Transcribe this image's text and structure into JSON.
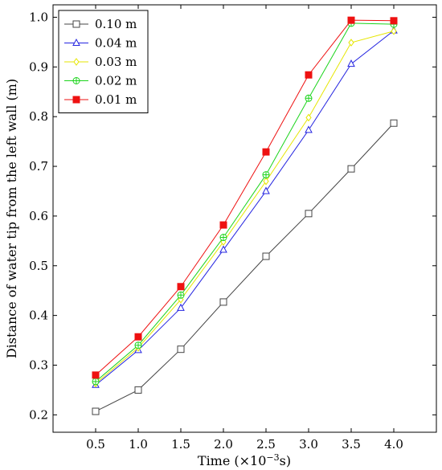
{
  "chart_data": {
    "type": "line",
    "title": "",
    "xlabel_main": "Time (×10",
    "xlabel_exp": "−3",
    "xlabel_unit": "s)",
    "ylabel": "Distance of water tip from the left wall (m)",
    "x": [
      0.5,
      1.0,
      1.5,
      2.0,
      2.5,
      3.0,
      3.5,
      4.0
    ],
    "xticks": [
      "0.5",
      "1.0",
      "1.5",
      "2.0",
      "2.5",
      "3.0",
      "3.5",
      "4.0"
    ],
    "yticks": [
      "0.2",
      "0.3",
      "0.4",
      "0.5",
      "0.6",
      "0.7",
      "0.8",
      "0.9",
      "1.0"
    ],
    "xlim": [
      0.0,
      4.5
    ],
    "ylim": [
      0.165,
      1.025
    ],
    "grid": false,
    "legend_position": "top-left",
    "series": [
      {
        "name": "0.10 m",
        "color": "#444444",
        "marker": "open-square",
        "values": [
          0.207,
          0.25,
          0.332,
          0.427,
          0.519,
          0.605,
          0.695,
          0.787
        ]
      },
      {
        "name": "0.04 m",
        "color": "#2424e0",
        "marker": "open-triangle",
        "values": [
          0.26,
          0.33,
          0.415,
          0.532,
          0.65,
          0.773,
          0.906,
          0.973
        ]
      },
      {
        "name": "0.03 m",
        "color": "#e6e600",
        "marker": "open-diamond",
        "values": [
          0.263,
          0.335,
          0.432,
          0.548,
          0.67,
          0.798,
          0.949,
          0.972
        ]
      },
      {
        "name": "0.02 m",
        "color": "#1bd41b",
        "marker": "circle-plus",
        "values": [
          0.267,
          0.34,
          0.441,
          0.557,
          0.683,
          0.837,
          0.988,
          0.986
        ]
      },
      {
        "name": "0.01 m",
        "color": "#ee1111",
        "marker": "filled-square",
        "values": [
          0.28,
          0.357,
          0.458,
          0.582,
          0.729,
          0.884,
          0.994,
          0.993
        ]
      }
    ]
  }
}
